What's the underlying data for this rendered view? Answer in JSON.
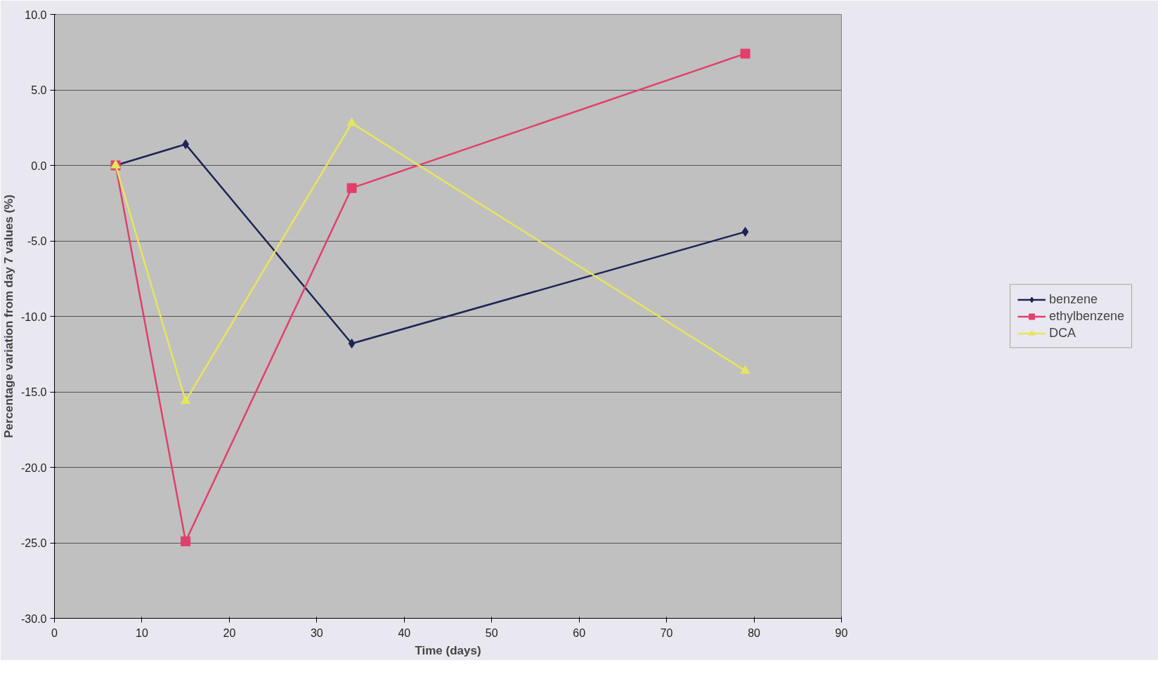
{
  "chart_data": {
    "type": "line",
    "xlabel": "Time (days)",
    "ylabel": "Percentage variation from day 7 values (%)",
    "x": [
      7,
      15,
      34,
      79
    ],
    "series": [
      {
        "name": "benzene",
        "color": "#1c2455",
        "marker": "diamond",
        "values": [
          0,
          1.4,
          -11.8,
          -4.4
        ]
      },
      {
        "name": "ethylbenzene",
        "color": "#e0406a",
        "marker": "square",
        "values": [
          0,
          -24.9,
          -1.5,
          7.4
        ]
      },
      {
        "name": "DCA",
        "color": "#e6e65a",
        "marker": "triangle",
        "values": [
          0,
          -15.6,
          2.8,
          -13.6
        ]
      }
    ],
    "xlim": [
      0,
      90
    ],
    "xticks": [
      0,
      10,
      20,
      30,
      40,
      50,
      60,
      70,
      80,
      90
    ],
    "ylim": [
      -30,
      10
    ],
    "yticks": [
      {
        "value": -30,
        "label": "-30.0"
      },
      {
        "value": -25,
        "label": "-25.0"
      },
      {
        "value": -20,
        "label": "-20.0"
      },
      {
        "value": -15,
        "label": "-15.0"
      },
      {
        "value": -10,
        "label": "-10.0"
      },
      {
        "value": -5,
        "label": "-5.0"
      },
      {
        "value": 0,
        "label": "0.0"
      },
      {
        "value": 5,
        "label": "5.0"
      },
      {
        "value": 10,
        "label": "10.0"
      }
    ],
    "grid": "y",
    "legend": "right",
    "line_style": "solid"
  }
}
